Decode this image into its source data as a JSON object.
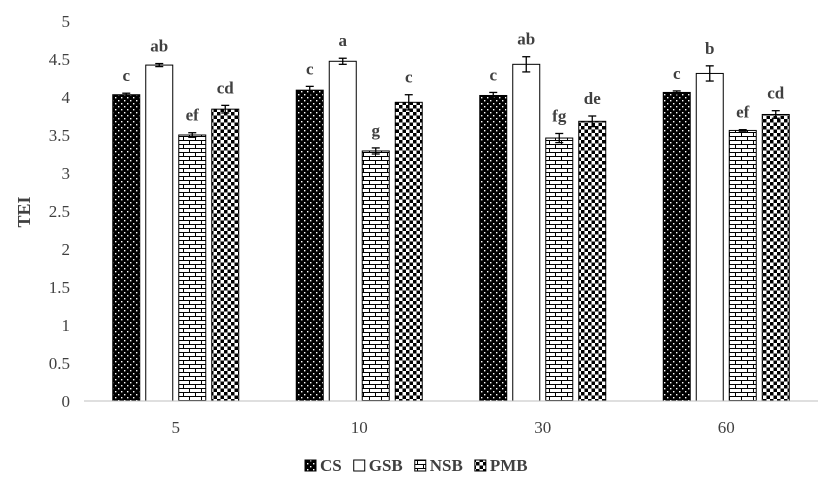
{
  "chart_data": {
    "type": "bar",
    "categories": [
      "5",
      "10",
      "30",
      "60"
    ],
    "ylabel": "TEI",
    "ylim": [
      0,
      5
    ],
    "yticks": [
      "0",
      "0.5",
      "1",
      "1.5",
      "2",
      "2.5",
      "3",
      "3.5",
      "4",
      "4.5",
      "5"
    ],
    "grid": false,
    "legend_position": "bottom",
    "series": [
      {
        "name": "CS",
        "pattern": "dots-on-black",
        "values": [
          4.03,
          4.09,
          4.02,
          4.06
        ],
        "errors": [
          0.02,
          0.05,
          0.04,
          0.02
        ],
        "labels": [
          "c",
          "c",
          "c",
          "c"
        ]
      },
      {
        "name": "GSB",
        "pattern": "white",
        "values": [
          4.42,
          4.47,
          4.43,
          4.31
        ],
        "errors": [
          0.02,
          0.04,
          0.1,
          0.1
        ],
        "labels": [
          "ab",
          "a",
          "ab",
          "b"
        ]
      },
      {
        "name": "NSB",
        "pattern": "brick",
        "values": [
          3.5,
          3.29,
          3.46,
          3.56
        ],
        "errors": [
          0.03,
          0.04,
          0.06,
          0.01
        ],
        "labels": [
          "ef",
          "g",
          "fg",
          "ef"
        ]
      },
      {
        "name": "PMB",
        "pattern": "checkerboard",
        "values": [
          3.84,
          3.93,
          3.68,
          3.77
        ],
        "errors": [
          0.05,
          0.1,
          0.07,
          0.05
        ],
        "labels": [
          "cd",
          "c",
          "de",
          "cd"
        ]
      }
    ]
  }
}
